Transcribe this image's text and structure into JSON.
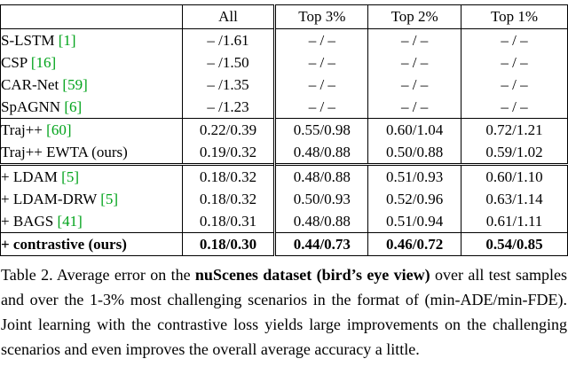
{
  "table": {
    "columns": [
      "",
      "All",
      "Top 3%",
      "Top 2%",
      "Top 1%"
    ],
    "rows": [
      {
        "name": "S-LSTM ",
        "cite": "[1]",
        "cells": [
          "–  /1.61",
          "– / –",
          "– / –",
          "– / –"
        ]
      },
      {
        "name": "CSP ",
        "cite": "[16]",
        "cells": [
          "–  /1.50",
          "– / –",
          "– / –",
          "– / –"
        ]
      },
      {
        "name": "CAR-Net ",
        "cite": "[59]",
        "cells": [
          "–  /1.35",
          "– / –",
          "– / –",
          "– / –"
        ]
      },
      {
        "name": "SpAGNN ",
        "cite": "[6]",
        "cells": [
          "–  /1.23",
          "– / –",
          "– / –",
          "– / –"
        ]
      },
      {
        "name": "Traj++ ",
        "cite": "[60]",
        "cells": [
          "0.22/0.39",
          "0.55/0.98",
          "0.60/1.04",
          "0.72/1.21"
        ]
      },
      {
        "name": "Traj++ EWTA (ours)",
        "cite": "",
        "cells": [
          "0.19/0.32",
          "0.48/0.88",
          "0.50/0.88",
          "0.59/1.02"
        ]
      },
      {
        "name": "+ LDAM ",
        "cite": "[5]",
        "cells": [
          "0.18/0.32",
          "0.48/0.88",
          "0.51/0.93",
          "0.60/1.10"
        ]
      },
      {
        "name": "+ LDAM-DRW ",
        "cite": "[5]",
        "cells": [
          "0.18/0.32",
          "0.50/0.93",
          "0.52/0.96",
          "0.63/1.14"
        ]
      },
      {
        "name": "+ BAGS ",
        "cite": "[41]",
        "cells": [
          "0.18/0.31",
          "0.48/0.88",
          "0.51/0.94",
          "0.61/1.11"
        ]
      },
      {
        "name": "+ contrastive (ours)",
        "cite": "",
        "cells": [
          "0.18/0.30",
          "0.44/0.73",
          "0.46/0.72",
          "0.54/0.85"
        ]
      }
    ]
  },
  "caption": {
    "part1": "Table 2. Average error on the ",
    "bold": "nuScenes dataset (bird’s eye view)",
    "part2": " over all test samples and over the 1-3% most challenging scenarios in the format of (min-ADE/min-FDE). Joint learning with the contrastive loss yields large improvements on the challenging scenarios and even improves the overall average accuracy a little."
  },
  "colors": {
    "citation_green": "#00a31a",
    "text": "#000000",
    "background": "#ffffff"
  }
}
